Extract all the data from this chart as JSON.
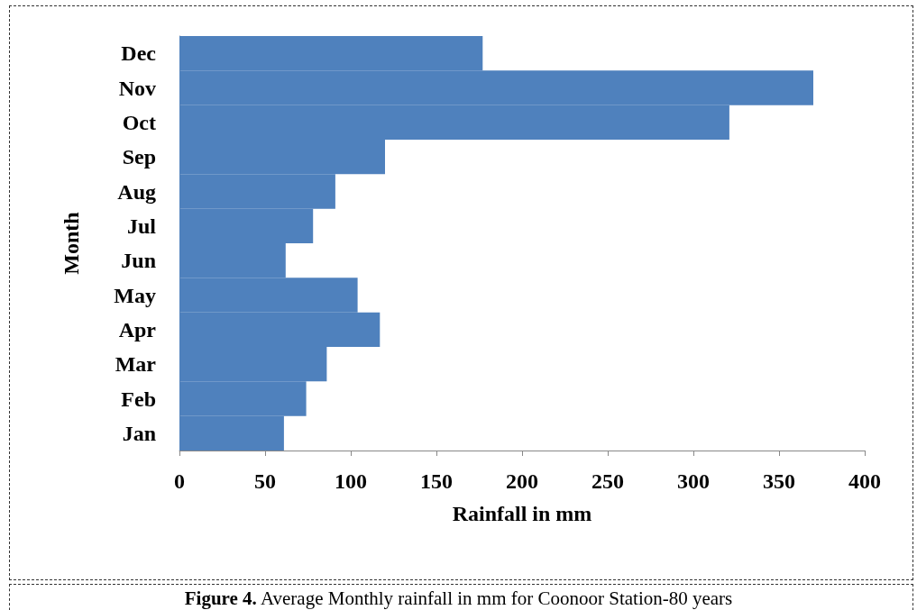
{
  "chart_data": {
    "type": "bar",
    "orientation": "horizontal",
    "categories": [
      "Dec",
      "Nov",
      "Oct",
      "Sep",
      "Aug",
      "Jul",
      "Jun",
      "May",
      "Apr",
      "Mar",
      "Feb",
      "Jan"
    ],
    "values": [
      177,
      370,
      321,
      120,
      91,
      78,
      62,
      104,
      117,
      86,
      74,
      61
    ],
    "color": "#4f81bd",
    "xlabel": "Rainfall in mm",
    "ylabel": "Month",
    "xlim": [
      0,
      400
    ],
    "xticks": [
      0,
      50,
      100,
      150,
      200,
      250,
      300,
      350,
      400
    ],
    "grid": false,
    "annotations": [
      "Figure 4. Average Monthly rainfall in mm for Coonoor Station-80 years"
    ]
  }
}
